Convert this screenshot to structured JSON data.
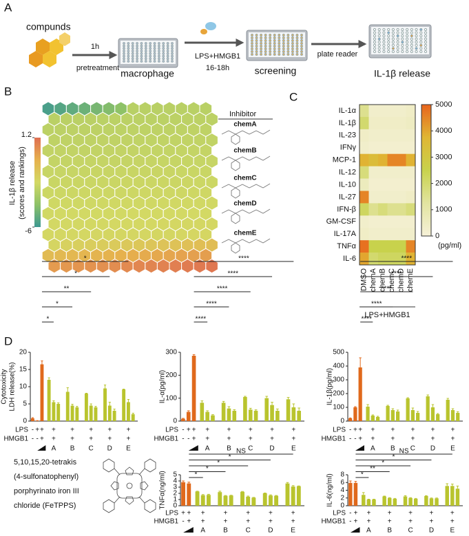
{
  "figure": {
    "panel_labels": [
      "A",
      "B",
      "C",
      "D"
    ],
    "workflow": {
      "compounds": "compunds",
      "step1_top": "1h",
      "step1_bottom": "pretreatment",
      "plate1": "macrophage",
      "step2_top": "LPS+HMGB1",
      "step2_bottom": "16-18h",
      "plate2": "screening",
      "step3": "plate reader",
      "plate3": "IL-1β release"
    },
    "screen": {
      "legend_title": [
        "IL-1β release",
        "(scores and rankings)"
      ],
      "clim": [
        -6,
        1.2
      ],
      "cticks": [
        -6,
        1.2
      ],
      "colorscale": [
        "#3d9991",
        "#8dc167",
        "#d3d964",
        "#e6b14d",
        "#df6f52"
      ],
      "inhibitor_header": "Inhibitor",
      "inhibitors": [
        "chemA",
        "chemB",
        "chemC",
        "chemD",
        "chemE"
      ],
      "inhibitor_color": "#63ad86"
    },
    "fetpps": [
      "5,10,15,20-tetrakis",
      "(4-sulfonatophenyl)",
      "porphyrinato iron III",
      "chloride (FeTPPS)"
    ]
  },
  "chart_data": [
    {
      "type": "heatmap",
      "rows": [
        "IL-1α",
        "IL-1β",
        "IL-23",
        "IFNγ",
        "MCP-1",
        "IL-12",
        "IL-10",
        "IL-27",
        "IFN-β",
        "GM-CSF",
        "IL-17A",
        "TNFα",
        "IL-6"
      ],
      "columns": [
        "DMSO",
        "chemA",
        "chemB",
        "chemC",
        "chemD",
        "chemE"
      ],
      "values": [
        [
          1500,
          300,
          300,
          300,
          300,
          400
        ],
        [
          2000,
          400,
          400,
          400,
          400,
          500
        ],
        [
          400,
          300,
          300,
          300,
          300,
          300
        ],
        [
          300,
          200,
          200,
          200,
          200,
          200
        ],
        [
          3800,
          3500,
          3800,
          4500,
          4500,
          3800
        ],
        [
          1800,
          300,
          300,
          300,
          300,
          300
        ],
        [
          600,
          200,
          200,
          200,
          200,
          200
        ],
        [
          4500,
          300,
          300,
          300,
          300,
          400
        ],
        [
          2200,
          1500,
          1800,
          1500,
          1500,
          1800
        ],
        [
          300,
          200,
          200,
          200,
          200,
          200
        ],
        [
          400,
          300,
          300,
          300,
          300,
          300
        ],
        [
          4800,
          2500,
          2500,
          2500,
          2500,
          4500
        ],
        [
          4000,
          2000,
          2200,
          2200,
          2200,
          3800
        ]
      ],
      "xlabel": "LPS+HMGB1",
      "clim": [
        0,
        5000
      ],
      "cticks": [
        0,
        1000,
        2000,
        3000,
        4000,
        5000
      ],
      "colorbar_label": "(pg/ml)",
      "colorscale": [
        "#f6f1d8",
        "#e2e4a0",
        "#c8d24c",
        "#e0b634",
        "#e8641c"
      ]
    },
    {
      "type": "bar",
      "ylabel": [
        "Cytotoxicity",
        "LDH release(%)"
      ],
      "ylim": [
        0,
        20
      ],
      "yticks": [
        0,
        5,
        10,
        15,
        20
      ],
      "single": {
        "values": [
          0.8,
          0.1,
          16.5
        ],
        "errors": [
          0.2,
          0.05,
          1.0
        ]
      },
      "groups": [
        "A",
        "B",
        "C",
        "D",
        "E"
      ],
      "group_values": [
        [
          12,
          5.5,
          5
        ],
        [
          8.5,
          4.5,
          4
        ],
        [
          8,
          4.5,
          4
        ],
        [
          9.5,
          4.5,
          3
        ],
        [
          9.2,
          5.5,
          2
        ]
      ],
      "group_errors": [
        [
          0.6,
          0.4,
          0.3
        ],
        [
          1.2,
          0.4,
          0.3
        ],
        [
          0.1,
          0.5,
          0.3
        ],
        [
          1.0,
          1.0,
          0.5
        ],
        [
          0.1,
          0.8,
          0.3
        ]
      ],
      "rows": [
        {
          "name": "LPS",
          "signs": [
            "-",
            "+",
            "+",
            "+",
            "+",
            "+",
            "+",
            "+"
          ]
        },
        {
          "name": "HMGB1",
          "signs": [
            "-",
            "-",
            "+",
            "+",
            "+",
            "+",
            "+",
            "+"
          ]
        }
      ],
      "significance": [
        "*",
        "*",
        "**",
        "*",
        "*"
      ],
      "colors": [
        "#e0691c",
        "#b9c42e"
      ]
    },
    {
      "type": "bar",
      "ylabel": [
        "IL-α(pg/ml)"
      ],
      "ylim": [
        0,
        300
      ],
      "yticks": [
        0,
        100,
        200,
        300
      ],
      "single": {
        "values": [
          10,
          40,
          285
        ],
        "errors": [
          2,
          5,
          5
        ]
      },
      "groups": [
        "A",
        "B",
        "C",
        "D",
        "E"
      ],
      "group_values": [
        [
          80,
          40,
          25
        ],
        [
          80,
          55,
          45
        ],
        [
          105,
          50,
          45
        ],
        [
          100,
          70,
          45
        ],
        [
          95,
          60,
          45
        ]
      ],
      "group_errors": [
        [
          8,
          5,
          3
        ],
        [
          6,
          8,
          5
        ],
        [
          3,
          6,
          4
        ],
        [
          8,
          12,
          8
        ],
        [
          8,
          15,
          12
        ]
      ],
      "rows": [
        {
          "name": "LPS",
          "signs": [
            "-",
            "+",
            "+",
            "+",
            "+",
            "+",
            "+",
            "+"
          ]
        },
        {
          "name": "HMGB1",
          "signs": [
            "-",
            "-",
            "+",
            "+",
            "+",
            "+",
            "+",
            "+"
          ]
        }
      ],
      "significance": [
        "****",
        "****",
        "****",
        "****",
        "****"
      ],
      "colors": [
        "#e0691c",
        "#b9c42e"
      ]
    },
    {
      "type": "bar",
      "ylabel": [
        "IL-1β(pg/ml)"
      ],
      "ylim": [
        0,
        500
      ],
      "yticks": [
        0,
        100,
        200,
        300,
        400,
        500
      ],
      "single": {
        "values": [
          20,
          100,
          390
        ],
        "errors": [
          3,
          5,
          70
        ]
      },
      "groups": [
        "A",
        "B",
        "C",
        "D",
        "E"
      ],
      "group_values": [
        [
          105,
          40,
          30
        ],
        [
          110,
          80,
          70
        ],
        [
          165,
          80,
          60
        ],
        [
          180,
          100,
          50
        ],
        [
          155,
          80,
          60
        ]
      ],
      "group_errors": [
        [
          15,
          5,
          5
        ],
        [
          5,
          10,
          10
        ],
        [
          5,
          15,
          10
        ],
        [
          10,
          20,
          5
        ],
        [
          10,
          10,
          8
        ]
      ],
      "rows": [
        {
          "name": "LPS",
          "signs": [
            "-",
            "+",
            "+",
            "+",
            "+",
            "+",
            "+",
            "+"
          ]
        },
        {
          "name": "HMGB1",
          "signs": [
            "-",
            "-",
            "+",
            "+",
            "+",
            "+",
            "+",
            "+"
          ]
        }
      ],
      "significance": [
        "****",
        "****",
        "****",
        "****",
        "****"
      ],
      "colors": [
        "#e0691c",
        "#b9c42e"
      ]
    },
    {
      "type": "bar",
      "ylabel": [
        "TNFα(ng/ml)"
      ],
      "ylim": [
        0,
        5
      ],
      "yticks": [
        0,
        1,
        2,
        3,
        4,
        5
      ],
      "single": {
        "values": [
          3.8,
          3.6
        ],
        "errors": [
          0.2,
          0.2
        ]
      },
      "groups": [
        "A",
        "B",
        "C",
        "D",
        "E"
      ],
      "group_values": [
        [
          2.3,
          1.7,
          1.75
        ],
        [
          2.2,
          1.6,
          1.65
        ],
        [
          2.25,
          1.45,
          1.3
        ],
        [
          2.0,
          1.65,
          1.6
        ],
        [
          3.6,
          3.1,
          3.15
        ]
      ],
      "group_errors": [
        [
          0.05,
          0.1,
          0.1
        ],
        [
          0.15,
          0.05,
          0.05
        ],
        [
          0.05,
          0.1,
          0.05
        ],
        [
          0.05,
          0.1,
          0.05
        ],
        [
          0.15,
          0.15,
          0.05
        ]
      ],
      "rows": [
        {
          "name": "LPS",
          "signs": [
            "+",
            "+",
            "+",
            "+",
            "+",
            "+",
            "+"
          ]
        },
        {
          "name": "HMGB1",
          "signs": [
            "-",
            "+",
            "+",
            "+",
            "+",
            "+",
            "+"
          ]
        }
      ],
      "significance": [
        "*",
        "*",
        "*",
        "*",
        "NS"
      ],
      "colors": [
        "#e0691c",
        "#b9c42e"
      ]
    },
    {
      "type": "bar",
      "ylabel": [
        "IL-6(ng/ml)"
      ],
      "ylim": [
        0,
        8
      ],
      "yticks": [
        0,
        2,
        4,
        6,
        8
      ],
      "single": {
        "values": [
          5.9,
          5.9
        ],
        "errors": [
          0.5,
          0.4
        ]
      },
      "groups": [
        "A",
        "B",
        "C",
        "D",
        "E"
      ],
      "group_values": [
        [
          2.8,
          1.6,
          1.6
        ],
        [
          2.4,
          2.0,
          1.8
        ],
        [
          2.4,
          2.0,
          1.8
        ],
        [
          2.5,
          1.9,
          1.9
        ],
        [
          5.1,
          5.1,
          4.4
        ]
      ],
      "group_errors": [
        [
          0.6,
          0.1,
          0.1
        ],
        [
          0.1,
          0.1,
          0.1
        ],
        [
          0.2,
          0.1,
          0.1
        ],
        [
          0.1,
          0.1,
          0.1
        ],
        [
          0.6,
          0.5,
          0.7
        ]
      ],
      "rows": [
        {
          "name": "LPS",
          "signs": [
            "-",
            "+",
            "+",
            "+",
            "+",
            "+",
            "+"
          ]
        },
        {
          "name": "HMGB1",
          "signs": [
            "-",
            "+",
            "+",
            "+",
            "+",
            "+",
            "+"
          ]
        }
      ],
      "significance": [
        "*",
        "**",
        "*",
        "*",
        "NS"
      ],
      "colors": [
        "#e0691c",
        "#b9c42e"
      ]
    }
  ]
}
